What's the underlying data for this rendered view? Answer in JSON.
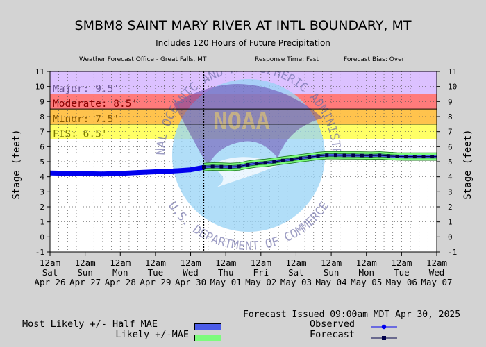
{
  "header": {
    "title": "SMBM8 SAINT MARY RIVER AT INTL BOUNDARY, MT",
    "subtitle": "Includes 120 Hours of Future Precipitation",
    "office": "Weather Forecast Office - Great Falls, MT",
    "response_time": "Response Time: Fast",
    "forecast_bias": "Forecast Bias:  Over"
  },
  "footer": {
    "issued": "Forecast Issued 09:00am MDT Apr 30, 2025"
  },
  "legend": {
    "most_likely": "Most Likely +/- Half MAE",
    "likely": "Likely +/-MAE",
    "observed": "Observed",
    "forecast": "Forecast"
  },
  "watermark": {
    "arc_text": "NATIONAL OCEANIC AND ATMOSPHERIC ADMINISTRATION",
    "bottom_text": "U.S. DEPARTMENT OF COMMERCE",
    "logo_text": "NOAA"
  },
  "colors": {
    "major": "#dcc1ff",
    "moderate": "#ff7b7b",
    "minor": "#ffc34d",
    "action": "#ffff66",
    "observed": "#0000ee",
    "most_likely_band": "#4b5ce8",
    "likely_band": "#7dfb7d",
    "forecast_line": "#00004a"
  },
  "chart_data": {
    "type": "line",
    "ylabel": "Stage (feet)",
    "ylim": [
      -1,
      11
    ],
    "yticks": [
      -1,
      0,
      1,
      2,
      3,
      4,
      5,
      6,
      7,
      8,
      9,
      10,
      11
    ],
    "grid": true,
    "x_ticks": [
      {
        "time": "12am",
        "day": "Sat",
        "date": "Apr 26"
      },
      {
        "time": "12am",
        "day": "Sun",
        "date": "Apr 27"
      },
      {
        "time": "12am",
        "day": "Mon",
        "date": "Apr 28"
      },
      {
        "time": "12am",
        "day": "Tue",
        "date": "Apr 29"
      },
      {
        "time": "12am",
        "day": "Wed",
        "date": "Apr 30"
      },
      {
        "time": "12am",
        "day": "Thu",
        "date": "May 01"
      },
      {
        "time": "12am",
        "day": "Fri",
        "date": "May 02"
      },
      {
        "time": "12am",
        "day": "Sat",
        "date": "May 03"
      },
      {
        "time": "12am",
        "day": "Sun",
        "date": "May 04"
      },
      {
        "time": "12am",
        "day": "Mon",
        "date": "May 05"
      },
      {
        "time": "12am",
        "day": "Tue",
        "date": "May 06"
      },
      {
        "time": "12am",
        "day": "Wed",
        "date": "May 07"
      }
    ],
    "flood_categories": [
      {
        "label": "Major: 9.5'",
        "stage": 9.5
      },
      {
        "label": "Moderate: 8.5'",
        "stage": 8.5
      },
      {
        "label": "Minor: 7.5'",
        "stage": 7.5
      },
      {
        "label": "FIS: 6.5'",
        "stage": 6.5
      }
    ],
    "issued_at": "Apr 30 09:00",
    "observed": {
      "name": "Observed",
      "x": [
        "Apr 26 00:00",
        "Apr 26 12:00",
        "Apr 27 00:00",
        "Apr 27 12:00",
        "Apr 28 00:00",
        "Apr 28 12:00",
        "Apr 29 00:00",
        "Apr 29 12:00",
        "Apr 30 00:00",
        "Apr 30 09:00"
      ],
      "y": [
        4.25,
        4.23,
        4.2,
        4.18,
        4.22,
        4.28,
        4.33,
        4.38,
        4.46,
        4.62
      ]
    },
    "forecast": {
      "name": "Forecast",
      "x": [
        "Apr 30 09:00",
        "Apr 30 15:00",
        "Apr 30 21:00",
        "May 01 03:00",
        "May 01 09:00",
        "May 01 15:00",
        "May 01 21:00",
        "May 02 03:00",
        "May 02 09:00",
        "May 02 15:00",
        "May 02 21:00",
        "May 03 03:00",
        "May 03 09:00",
        "May 03 15:00",
        "May 03 21:00",
        "May 04 03:00",
        "May 04 09:00",
        "May 04 15:00",
        "May 04 21:00",
        "May 05 03:00",
        "May 05 09:00",
        "May 05 15:00",
        "May 05 21:00",
        "May 06 03:00",
        "May 06 09:00",
        "May 06 15:00",
        "May 06 21:00",
        "May 07 03:00",
        "May 07 09:00"
      ],
      "y": [
        4.65,
        4.68,
        4.67,
        4.65,
        4.68,
        4.8,
        4.88,
        4.92,
        5.0,
        5.08,
        5.15,
        5.23,
        5.3,
        5.38,
        5.43,
        5.43,
        5.42,
        5.42,
        5.41,
        5.4,
        5.42,
        5.38,
        5.35,
        5.34,
        5.34,
        5.34,
        5.34,
        5.34,
        5.34
      ]
    },
    "most_likely_half_mae": 0.1,
    "likely_mae": 0.25
  }
}
